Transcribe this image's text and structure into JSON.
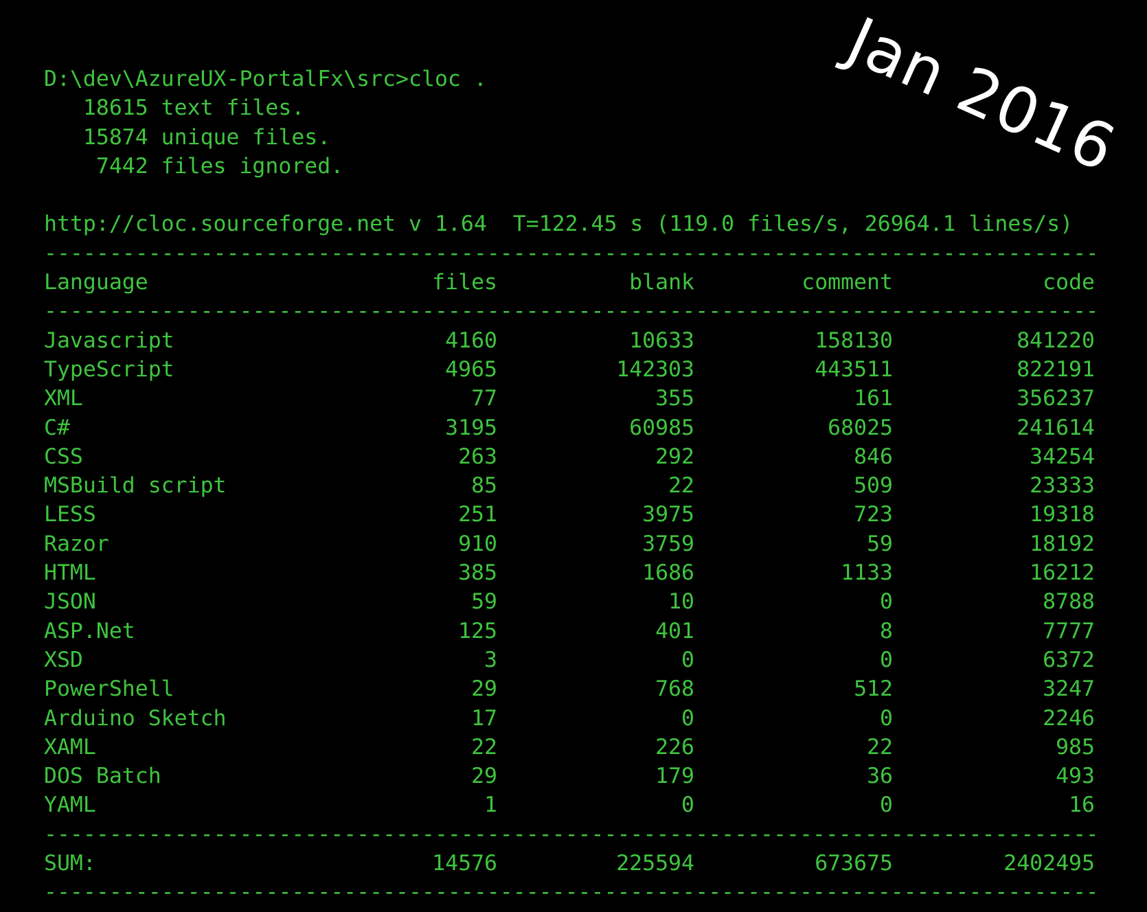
{
  "annotation": {
    "text": "Jan 2016",
    "color": "#ffffff"
  },
  "terminal": {
    "colors": {
      "text": "#3fc43f",
      "background": "#000000"
    },
    "command_line": "D:\\dev\\AzureUX-PortalFx\\src>cloc .",
    "summary_lines": [
      "   18615 text files.",
      "   15874 unique files.",
      "    7442 files ignored."
    ],
    "meta_line": "http://cloc.sourceforge.net v 1.64  T=122.45 s (119.0 files/s, 26964.1 lines/s)",
    "divider": "----------------------------------------------------------------------------------",
    "table": {
      "headers": {
        "language": "Language",
        "files": "files",
        "blank": "blank",
        "comment": "comment",
        "code": "code"
      },
      "rows": [
        {
          "language": "Javascript",
          "files": "4160",
          "blank": "10633",
          "comment": "158130",
          "code": "841220"
        },
        {
          "language": "TypeScript",
          "files": "4965",
          "blank": "142303",
          "comment": "443511",
          "code": "822191"
        },
        {
          "language": "XML",
          "files": "77",
          "blank": "355",
          "comment": "161",
          "code": "356237"
        },
        {
          "language": "C#",
          "files": "3195",
          "blank": "60985",
          "comment": "68025",
          "code": "241614"
        },
        {
          "language": "CSS",
          "files": "263",
          "blank": "292",
          "comment": "846",
          "code": "34254"
        },
        {
          "language": "MSBuild script",
          "files": "85",
          "blank": "22",
          "comment": "509",
          "code": "23333"
        },
        {
          "language": "LESS",
          "files": "251",
          "blank": "3975",
          "comment": "723",
          "code": "19318"
        },
        {
          "language": "Razor",
          "files": "910",
          "blank": "3759",
          "comment": "59",
          "code": "18192"
        },
        {
          "language": "HTML",
          "files": "385",
          "blank": "1686",
          "comment": "1133",
          "code": "16212"
        },
        {
          "language": "JSON",
          "files": "59",
          "blank": "10",
          "comment": "0",
          "code": "8788"
        },
        {
          "language": "ASP.Net",
          "files": "125",
          "blank": "401",
          "comment": "8",
          "code": "7777"
        },
        {
          "language": "XSD",
          "files": "3",
          "blank": "0",
          "comment": "0",
          "code": "6372"
        },
        {
          "language": "PowerShell",
          "files": "29",
          "blank": "768",
          "comment": "512",
          "code": "3247"
        },
        {
          "language": "Arduino Sketch",
          "files": "17",
          "blank": "0",
          "comment": "0",
          "code": "2246"
        },
        {
          "language": "XAML",
          "files": "22",
          "blank": "226",
          "comment": "22",
          "code": "985"
        },
        {
          "language": "DOS Batch",
          "files": "29",
          "blank": "179",
          "comment": "36",
          "code": "493"
        },
        {
          "language": "YAML",
          "files": "1",
          "blank": "0",
          "comment": "0",
          "code": "16"
        }
      ],
      "sum": {
        "label": "SUM:",
        "files": "14576",
        "blank": "225594",
        "comment": "673675",
        "code": "2402495"
      }
    }
  }
}
